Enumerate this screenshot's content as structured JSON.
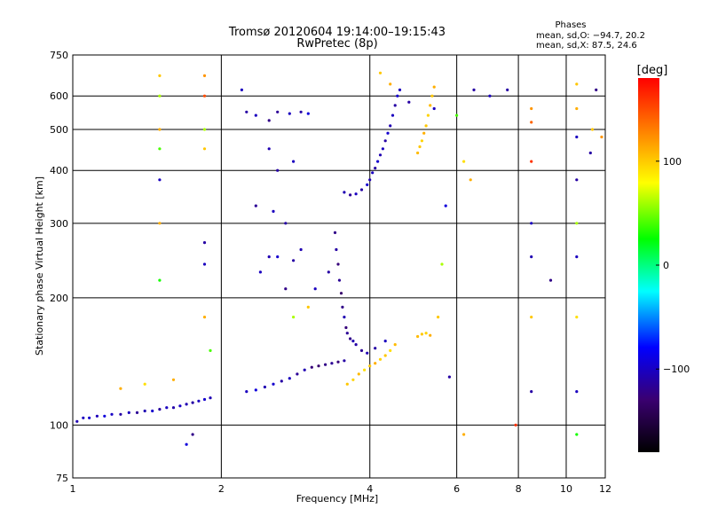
{
  "chart_data": {
    "type": "scatter",
    "title": "Tromsø 20120604 19:14:00–19:15:43",
    "subtitle": "RwPretec (8p)",
    "xlabel": "Frequency [MHz]",
    "ylabel": "Stationary phase Virtual Height [km]",
    "xscale": "log",
    "yscale": "log",
    "xlim": [
      1,
      12
    ],
    "ylim": [
      75,
      750
    ],
    "xticks": [
      1,
      2,
      4,
      6,
      8,
      10,
      12
    ],
    "xtick_labels": [
      "1",
      "2",
      "4",
      "6",
      "8",
      "10",
      "12"
    ],
    "yticks": [
      75,
      100,
      200,
      300,
      400,
      500,
      600,
      750
    ],
    "ytick_labels": [
      "75",
      "100",
      "200",
      "300",
      "400",
      "500",
      "600",
      "750"
    ],
    "grid": true,
    "phases_box": {
      "heading": "Phases",
      "line1": "mean, sd,O: −94.7, 20.2",
      "line2": "mean, sd,X:  87.5, 24.6"
    },
    "colorbar": {
      "label": "[deg]",
      "range": [
        -180,
        180
      ],
      "ticks": [
        100,
        0,
        -100
      ],
      "tick_labels": [
        "100",
        "0",
        "−100"
      ],
      "colors": [
        "#000000",
        "#3a0070",
        "#0000ff",
        "#00ffff",
        "#00ff00",
        "#ffff00",
        "#ff8000",
        "#ff0000"
      ]
    },
    "series": [
      {
        "points": [
          [
            1.02,
            102,
            -105
          ],
          [
            1.05,
            104,
            -100
          ],
          [
            1.08,
            104,
            -95
          ],
          [
            1.12,
            105,
            -102
          ],
          [
            1.16,
            105,
            -90
          ],
          [
            1.2,
            106,
            -98
          ],
          [
            1.25,
            106,
            -110
          ],
          [
            1.3,
            107,
            -100
          ],
          [
            1.35,
            107,
            -115
          ],
          [
            1.4,
            108,
            -105
          ],
          [
            1.45,
            108,
            -95
          ],
          [
            1.5,
            109,
            -112
          ],
          [
            1.55,
            110,
            -100
          ],
          [
            1.6,
            110,
            -108
          ],
          [
            1.65,
            111,
            -98
          ],
          [
            1.7,
            112,
            -105
          ],
          [
            1.75,
            113,
            -110
          ],
          [
            1.8,
            114,
            -100
          ],
          [
            1.85,
            115,
            -95
          ],
          [
            1.9,
            116,
            -105
          ]
        ]
      },
      {
        "points": [
          [
            2.25,
            120,
            -100
          ],
          [
            2.35,
            121,
            -90
          ],
          [
            2.45,
            123,
            -105
          ],
          [
            2.55,
            125,
            -95
          ],
          [
            2.65,
            127,
            -110
          ],
          [
            2.75,
            129,
            -100
          ],
          [
            2.85,
            132,
            -115
          ],
          [
            2.95,
            135,
            -105
          ],
          [
            3.05,
            137,
            -125
          ],
          [
            3.15,
            138,
            -130
          ],
          [
            3.25,
            139,
            -120
          ],
          [
            3.35,
            140,
            -115
          ],
          [
            3.45,
            141,
            -125
          ],
          [
            3.55,
            142,
            -110
          ]
        ]
      },
      {
        "points": [
          [
            3.4,
            285,
            -120
          ],
          [
            3.42,
            260,
            -110
          ],
          [
            3.45,
            240,
            -125
          ],
          [
            3.47,
            220,
            -115
          ],
          [
            3.5,
            205,
            -130
          ],
          [
            3.52,
            190,
            -120
          ],
          [
            3.55,
            180,
            -105
          ],
          [
            3.58,
            170,
            -125
          ],
          [
            3.6,
            165,
            -115
          ],
          [
            3.65,
            160,
            -120
          ],
          [
            3.7,
            158,
            -105
          ],
          [
            3.75,
            155,
            -110
          ],
          [
            3.85,
            150,
            -115
          ],
          [
            3.95,
            148,
            -105
          ],
          [
            4.1,
            152,
            -110
          ],
          [
            4.3,
            158,
            -100
          ]
        ]
      },
      {
        "points": [
          [
            3.6,
            125,
            100
          ],
          [
            3.7,
            128,
            95
          ],
          [
            3.8,
            132,
            105
          ],
          [
            3.9,
            135,
            90
          ],
          [
            4.0,
            138,
            100
          ],
          [
            4.1,
            140,
            110
          ],
          [
            4.2,
            143,
            95
          ],
          [
            4.3,
            146,
            100
          ],
          [
            4.4,
            150,
            90
          ],
          [
            4.5,
            155,
            105
          ]
        ]
      },
      {
        "points": [
          [
            3.55,
            355,
            -105
          ],
          [
            3.65,
            350,
            -115
          ],
          [
            3.75,
            352,
            -100
          ],
          [
            3.85,
            360,
            -110
          ],
          [
            3.95,
            370,
            -95
          ],
          [
            4.0,
            380,
            -105
          ],
          [
            4.05,
            395,
            -100
          ],
          [
            4.1,
            405,
            -110
          ],
          [
            4.15,
            420,
            -95
          ],
          [
            4.2,
            435,
            -105
          ],
          [
            4.25,
            450,
            -100
          ],
          [
            4.3,
            470,
            -110
          ],
          [
            4.35,
            490,
            -95
          ],
          [
            4.4,
            510,
            -105
          ],
          [
            4.45,
            540,
            -100
          ],
          [
            4.5,
            570,
            -110
          ],
          [
            4.55,
            600,
            -95
          ]
        ]
      },
      {
        "points": [
          [
            5.0,
            440,
            105
          ],
          [
            5.05,
            455,
            100
          ],
          [
            5.1,
            470,
            95
          ],
          [
            5.15,
            490,
            110
          ],
          [
            5.2,
            510,
            100
          ],
          [
            5.25,
            540,
            95
          ],
          [
            5.3,
            570,
            105
          ],
          [
            5.35,
            600,
            100
          ],
          [
            5.4,
            630,
            110
          ]
        ]
      },
      {
        "points": [
          [
            5.0,
            162,
            105
          ],
          [
            5.1,
            164,
            100
          ],
          [
            5.2,
            165,
            95
          ],
          [
            5.3,
            163,
            110
          ]
        ]
      },
      {
        "points": [
          [
            1.5,
            670,
            100
          ],
          [
            1.5,
            600,
            60
          ],
          [
            1.5,
            500,
            110
          ],
          [
            1.5,
            450,
            40
          ],
          [
            1.5,
            380,
            -100
          ],
          [
            1.5,
            300,
            110
          ],
          [
            1.5,
            220,
            30
          ],
          [
            1.25,
            122,
            110
          ],
          [
            1.4,
            125,
            90
          ],
          [
            1.7,
            90,
            -90
          ],
          [
            1.85,
            670,
            120
          ],
          [
            1.85,
            600,
            150
          ],
          [
            1.85,
            500,
            60
          ],
          [
            1.85,
            450,
            100
          ],
          [
            1.85,
            270,
            -110
          ],
          [
            1.85,
            240,
            -100
          ],
          [
            1.85,
            180,
            110
          ],
          [
            1.9,
            150,
            40
          ],
          [
            1.6,
            128,
            110
          ],
          [
            1.75,
            95,
            -120
          ]
        ]
      },
      {
        "points": [
          [
            2.2,
            620,
            -100
          ],
          [
            2.25,
            550,
            -110
          ],
          [
            2.35,
            540,
            -100
          ],
          [
            2.5,
            525,
            -120
          ],
          [
            2.6,
            550,
            -115
          ],
          [
            2.75,
            545,
            -100
          ],
          [
            2.9,
            550,
            -110
          ],
          [
            3.0,
            545,
            -90
          ],
          [
            2.5,
            450,
            -105
          ],
          [
            2.6,
            400,
            -110
          ],
          [
            2.8,
            420,
            -100
          ],
          [
            2.35,
            330,
            -115
          ],
          [
            2.55,
            320,
            -100
          ],
          [
            2.7,
            300,
            -110
          ],
          [
            2.5,
            250,
            -105
          ],
          [
            2.6,
            250,
            -95
          ],
          [
            2.8,
            245,
            -110
          ],
          [
            2.4,
            230,
            -100
          ],
          [
            2.7,
            210,
            -120
          ],
          [
            2.9,
            260,
            -105
          ],
          [
            3.1,
            210,
            -100
          ],
          [
            3.3,
            230,
            -110
          ],
          [
            2.8,
            180,
            60
          ],
          [
            3.0,
            190,
            100
          ]
        ]
      },
      {
        "points": [
          [
            4.2,
            680,
            100
          ],
          [
            4.4,
            640,
            110
          ],
          [
            4.6,
            620,
            -100
          ],
          [
            4.8,
            580,
            -110
          ],
          [
            5.4,
            560,
            -100
          ],
          [
            6.0,
            540,
            40
          ],
          [
            6.5,
            620,
            -110
          ],
          [
            7.0,
            600,
            -100
          ],
          [
            7.6,
            620,
            -110
          ],
          [
            8.5,
            560,
            120
          ],
          [
            8.5,
            520,
            140
          ],
          [
            8.5,
            420,
            160
          ],
          [
            8.5,
            300,
            -100
          ],
          [
            8.5,
            250,
            -105
          ],
          [
            8.5,
            180,
            100
          ],
          [
            8.5,
            120,
            -110
          ],
          [
            9.3,
            220,
            -120
          ],
          [
            10.5,
            640,
            100
          ],
          [
            10.5,
            560,
            110
          ],
          [
            10.5,
            480,
            -100
          ],
          [
            10.5,
            380,
            -110
          ],
          [
            10.5,
            300,
            60
          ],
          [
            10.5,
            250,
            -100
          ],
          [
            10.5,
            180,
            90
          ],
          [
            10.5,
            120,
            -100
          ],
          [
            10.5,
            95,
            30
          ],
          [
            11.5,
            620,
            -120
          ],
          [
            11.8,
            480,
            120
          ],
          [
            11.3,
            500,
            100
          ],
          [
            11.2,
            440,
            -110
          ],
          [
            7.9,
            100,
            160
          ],
          [
            6.2,
            95,
            110
          ],
          [
            5.8,
            130,
            -110
          ],
          [
            5.5,
            180,
            100
          ],
          [
            5.6,
            240,
            60
          ],
          [
            5.7,
            330,
            -90
          ],
          [
            6.4,
            380,
            110
          ],
          [
            6.2,
            420,
            90
          ]
        ]
      }
    ]
  }
}
